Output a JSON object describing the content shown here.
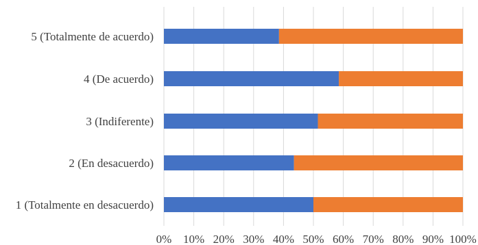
{
  "chart_data": {
    "type": "bar",
    "orientation": "horizontal",
    "stacked": true,
    "percent_stacked": true,
    "title": "",
    "xlabel": "",
    "ylabel": "",
    "xlim": [
      0,
      100
    ],
    "grid": true,
    "legend": "none",
    "categories": [
      "5 (Totalmente de acuerdo)",
      "4 (De acuerdo)",
      "3 (Indiferente)",
      "2 (En desacuerdo)",
      "1 (Totalmente en desacuerdo)"
    ],
    "series": [
      {
        "values": [
          38.5,
          58.5,
          51.5,
          43.5,
          50.0
        ],
        "color": "#4472c4"
      },
      {
        "values": [
          61.5,
          41.5,
          48.5,
          56.5,
          50.0
        ],
        "color": "#ed7d31"
      }
    ],
    "x_ticks": [
      "0%",
      "10%",
      "20%",
      "30%",
      "40%",
      "50%",
      "60%",
      "70%",
      "80%",
      "90%",
      "100%"
    ]
  }
}
